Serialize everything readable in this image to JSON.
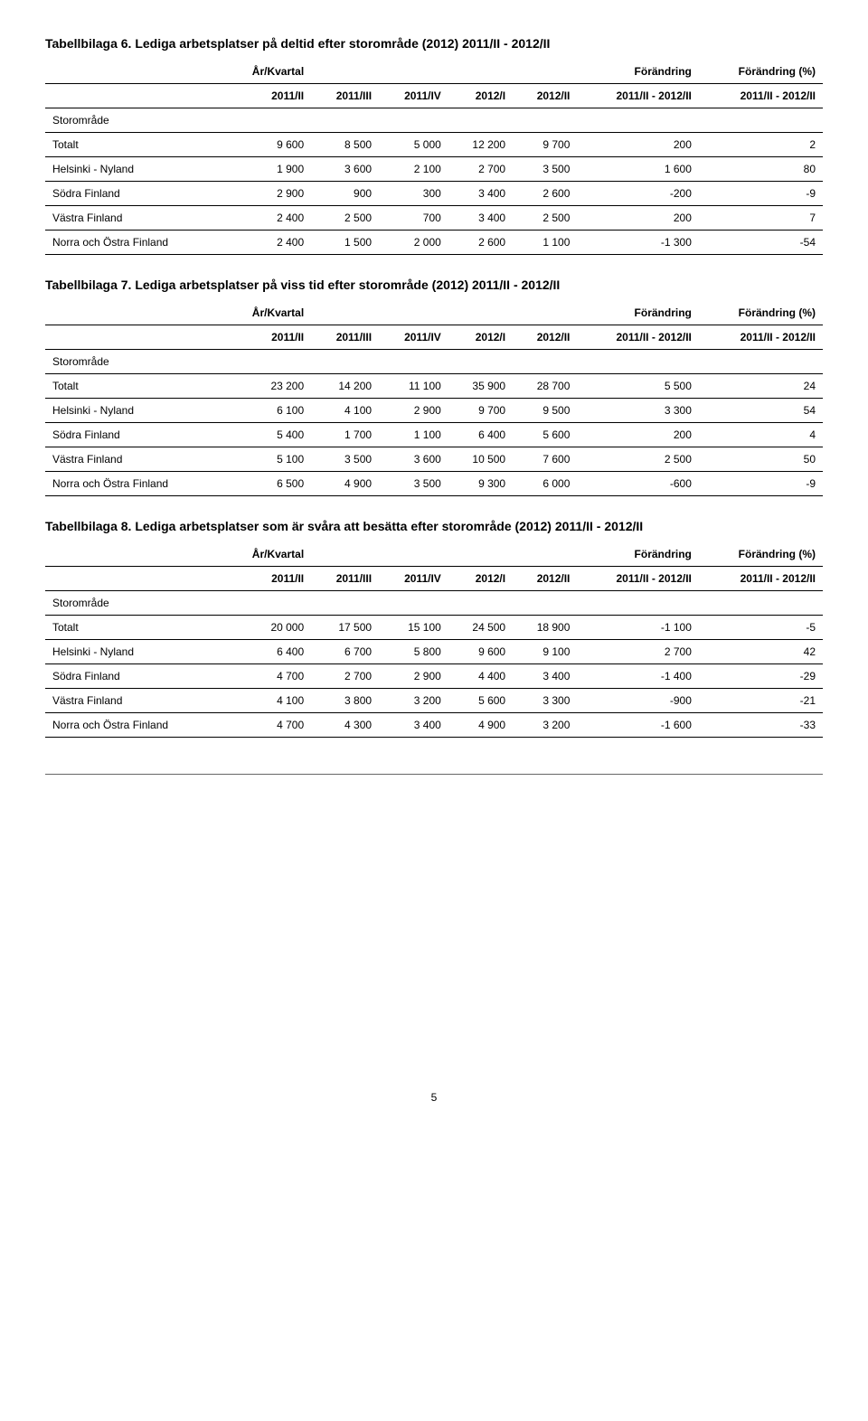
{
  "page_number": "5",
  "tables": [
    {
      "title": "Tabellbilaga 6. Lediga arbetsplatser på deltid efter storområde (2012) 2011/II - 2012/II",
      "group_headers": [
        "",
        "År/Kvartal",
        "",
        "",
        "",
        "",
        "Förändring",
        "Förändring (%)"
      ],
      "col_headers": [
        "",
        "2011/II",
        "2011/III",
        "2011/IV",
        "2012/I",
        "2012/II",
        "2011/II - 2012/II",
        "2011/II - 2012/II"
      ],
      "section_label": "Storområde",
      "rows": [
        [
          "Totalt",
          "9 600",
          "8 500",
          "5 000",
          "12 200",
          "9 700",
          "200",
          "2"
        ],
        [
          "Helsinki - Nyland",
          "1 900",
          "3 600",
          "2 100",
          "2 700",
          "3 500",
          "1 600",
          "80"
        ],
        [
          "Södra Finland",
          "2 900",
          "900",
          "300",
          "3 400",
          "2 600",
          "-200",
          "-9"
        ],
        [
          "Västra Finland",
          "2 400",
          "2 500",
          "700",
          "3 400",
          "2 500",
          "200",
          "7"
        ],
        [
          "Norra och Östra Finland",
          "2 400",
          "1 500",
          "2 000",
          "2 600",
          "1 100",
          "-1 300",
          "-54"
        ]
      ]
    },
    {
      "title": "Tabellbilaga 7. Lediga arbetsplatser på viss tid efter storområde (2012) 2011/II - 2012/II",
      "group_headers": [
        "",
        "År/Kvartal",
        "",
        "",
        "",
        "",
        "Förändring",
        "Förändring (%)"
      ],
      "col_headers": [
        "",
        "2011/II",
        "2011/III",
        "2011/IV",
        "2012/I",
        "2012/II",
        "2011/II - 2012/II",
        "2011/II - 2012/II"
      ],
      "section_label": "Storområde",
      "rows": [
        [
          "Totalt",
          "23 200",
          "14 200",
          "11 100",
          "35 900",
          "28 700",
          "5 500",
          "24"
        ],
        [
          "Helsinki - Nyland",
          "6 100",
          "4 100",
          "2 900",
          "9 700",
          "9 500",
          "3 300",
          "54"
        ],
        [
          "Södra Finland",
          "5 400",
          "1 700",
          "1 100",
          "6 400",
          "5 600",
          "200",
          "4"
        ],
        [
          "Västra Finland",
          "5 100",
          "3 500",
          "3 600",
          "10 500",
          "7 600",
          "2 500",
          "50"
        ],
        [
          "Norra och Östra Finland",
          "6 500",
          "4 900",
          "3 500",
          "9 300",
          "6 000",
          "-600",
          "-9"
        ]
      ]
    },
    {
      "title": "Tabellbilaga 8. Lediga arbetsplatser som är svåra att besätta efter storområde (2012) 2011/II - 2012/II",
      "group_headers": [
        "",
        "År/Kvartal",
        "",
        "",
        "",
        "",
        "Förändring",
        "Förändring (%)"
      ],
      "col_headers": [
        "",
        "2011/II",
        "2011/III",
        "2011/IV",
        "2012/I",
        "2012/II",
        "2011/II - 2012/II",
        "2011/II - 2012/II"
      ],
      "section_label": "Storområde",
      "rows": [
        [
          "Totalt",
          "20 000",
          "17 500",
          "15 100",
          "24 500",
          "18 900",
          "-1 100",
          "-5"
        ],
        [
          "Helsinki - Nyland",
          "6 400",
          "6 700",
          "5 800",
          "9 600",
          "9 100",
          "2 700",
          "42"
        ],
        [
          "Södra Finland",
          "4 700",
          "2 700",
          "2 900",
          "4 400",
          "3 400",
          "-1 400",
          "-29"
        ],
        [
          "Västra Finland",
          "4 100",
          "3 800",
          "3 200",
          "5 600",
          "3 300",
          "-900",
          "-21"
        ],
        [
          "Norra och Östra Finland",
          "4 700",
          "4 300",
          "3 400",
          "4 900",
          "3 200",
          "-1 600",
          "-33"
        ]
      ]
    }
  ]
}
